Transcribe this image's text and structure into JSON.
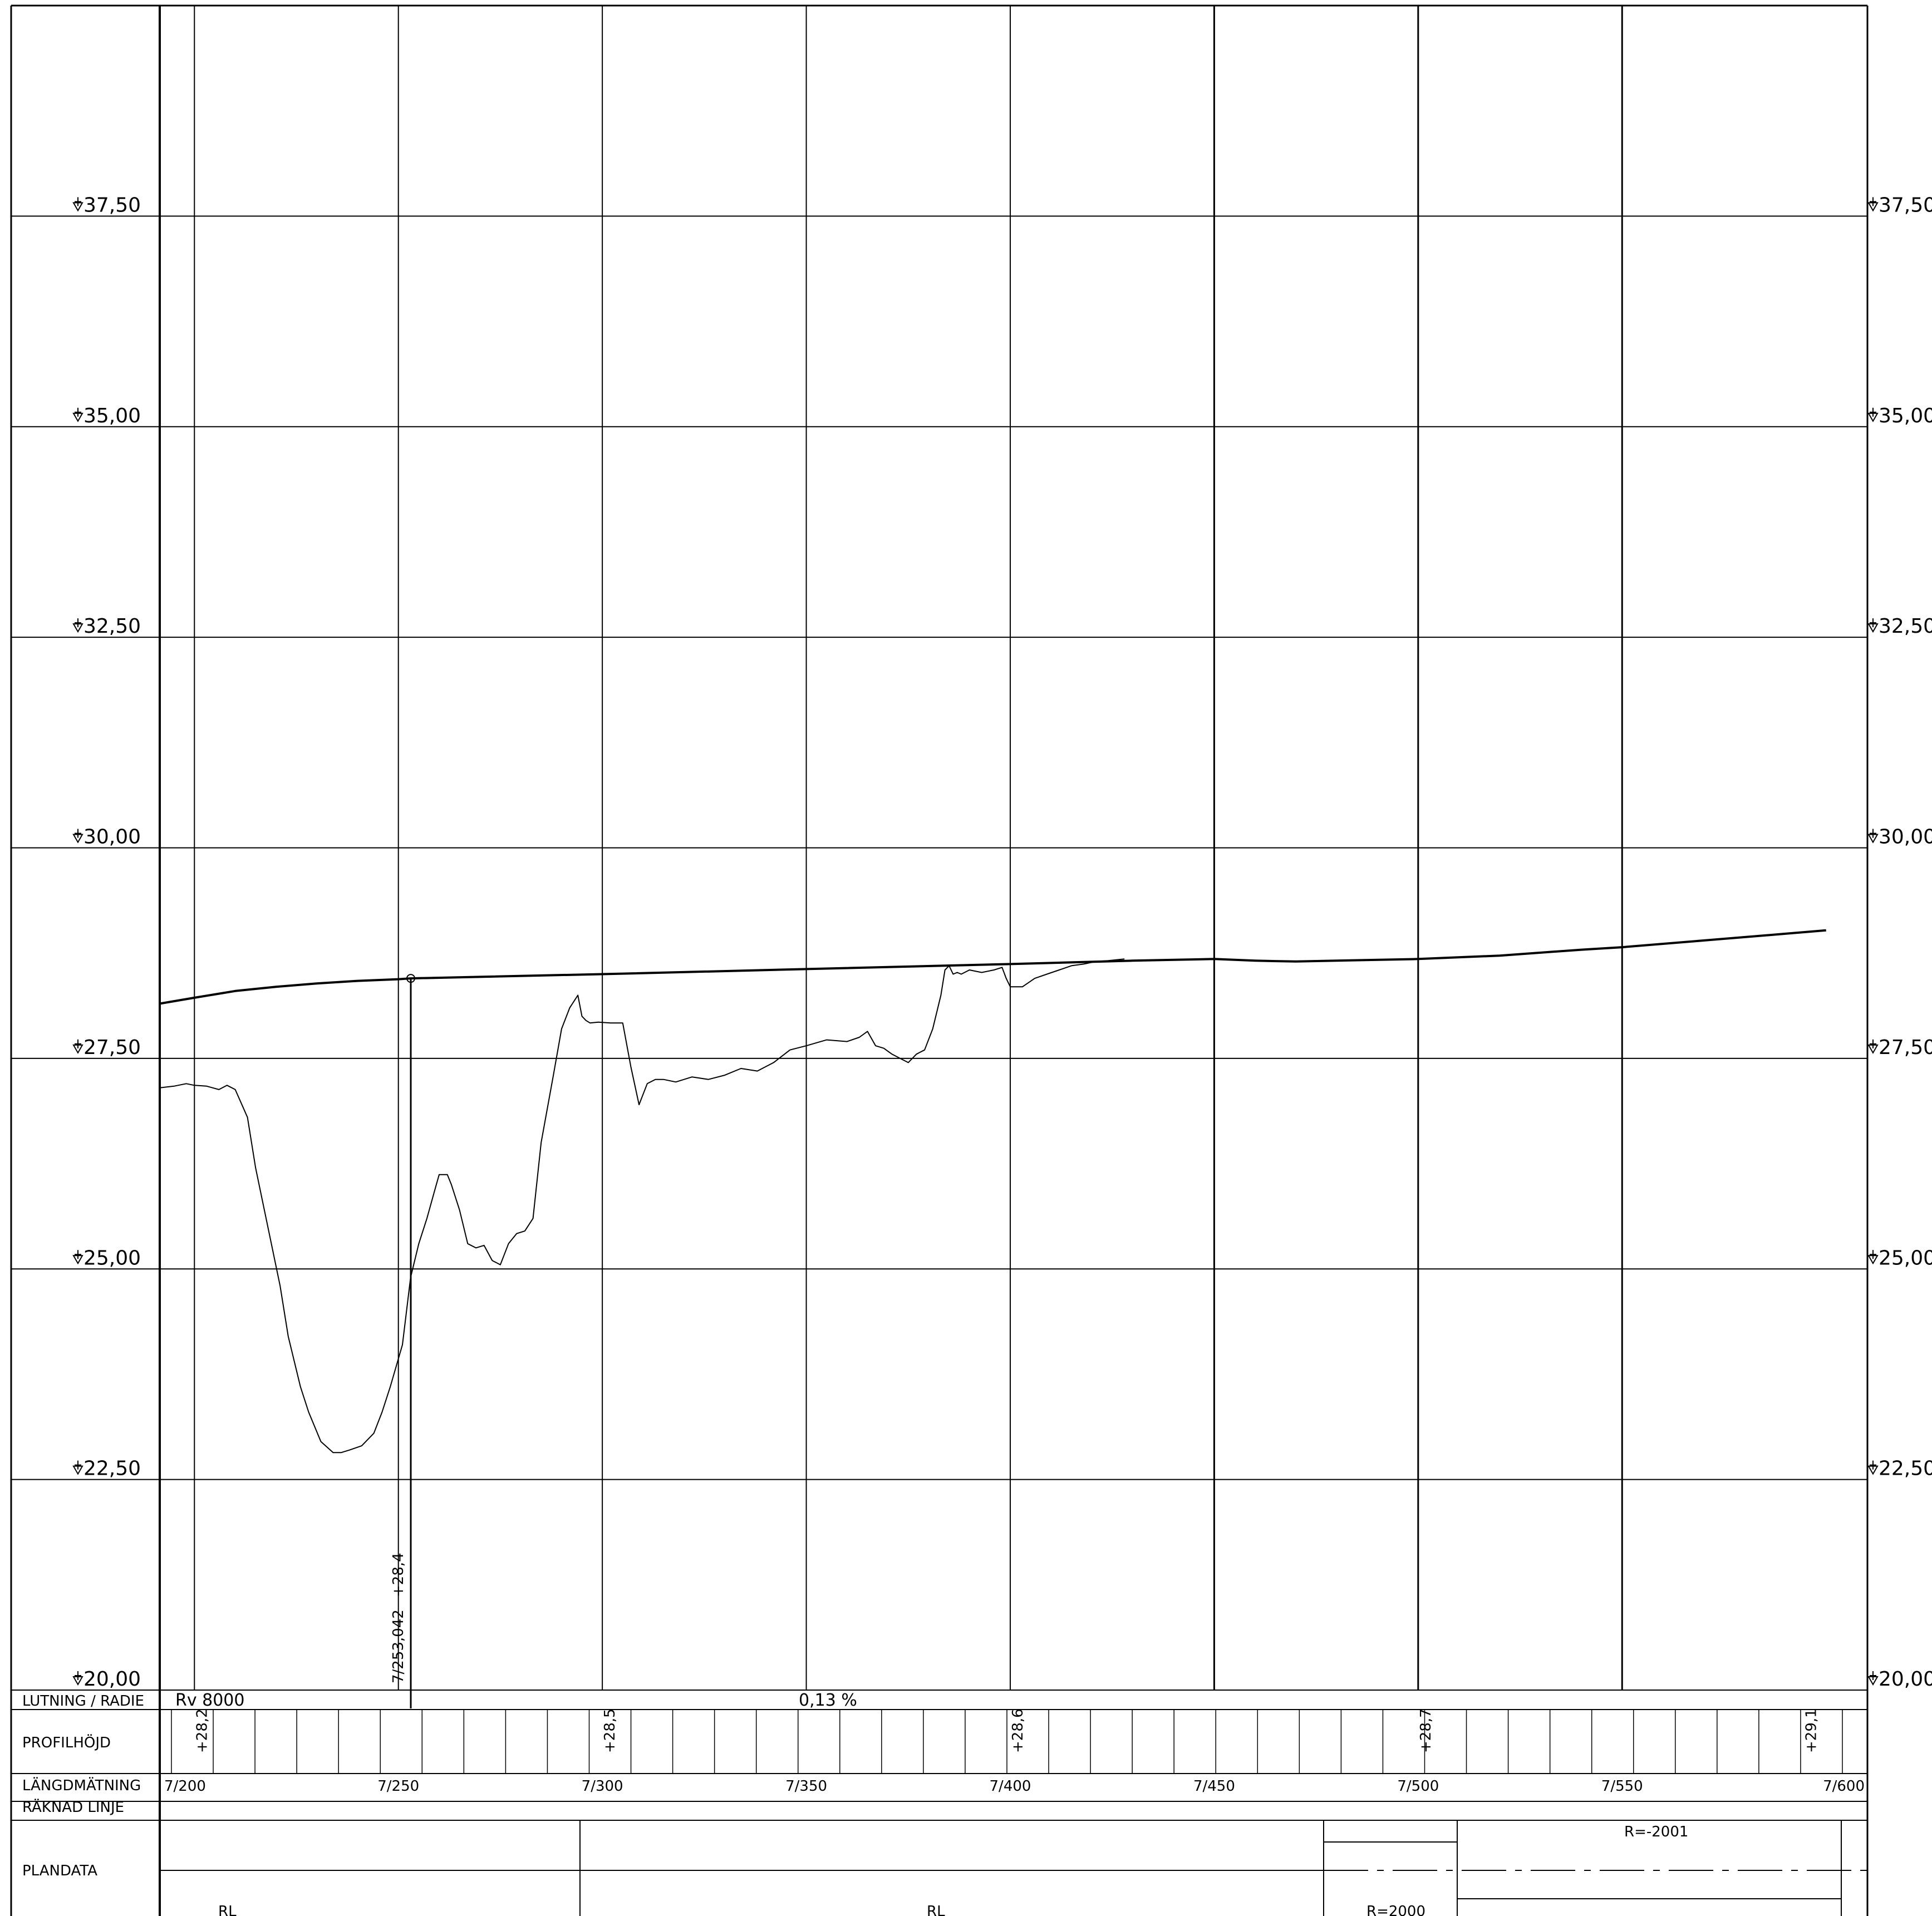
{
  "chart_data": {
    "type": "line",
    "x_range": [
      7191.5,
      7604.0
    ],
    "y_range": [
      20.0,
      40.0
    ],
    "y_ticks": [
      20.0,
      22.5,
      25.0,
      27.5,
      30.0,
      32.5,
      35.0,
      37.5
    ],
    "y_tick_labels": [
      "20,00",
      "22,50",
      "25,00",
      "27,50",
      "30,00",
      "32,50",
      "35,00",
      "37,50"
    ],
    "x_grid": [
      7200,
      7250,
      7300,
      7350,
      7400,
      7450,
      7500,
      7550
    ],
    "x_tick_labels": [
      "7/200",
      "7/250",
      "7/300",
      "7/350",
      "7/400",
      "7/450",
      "7/500",
      "7/550",
      "7/600"
    ],
    "series": [
      {
        "role": "design-profile",
        "x": [
          7191.5,
          7200,
          7210,
          7220,
          7230,
          7240,
          7250,
          7253.0,
          7300,
          7350,
          7400,
          7430,
          7450,
          7460,
          7470,
          7480,
          7500,
          7520,
          7540,
          7550,
          7570,
          7590,
          7600
        ],
        "y": [
          28.15,
          28.22,
          28.3,
          28.35,
          28.39,
          28.42,
          28.44,
          28.45,
          28.5,
          28.56,
          28.62,
          28.66,
          28.68,
          28.66,
          28.65,
          28.66,
          28.68,
          28.72,
          28.79,
          28.82,
          28.9,
          28.98,
          29.02
        ]
      },
      {
        "role": "ground-line",
        "x": [
          7191.5,
          7195,
          7198,
          7200,
          7203,
          7206,
          7208,
          7210,
          7213,
          7215,
          7218,
          7221,
          7223,
          7226,
          7228,
          7231,
          7234,
          7236,
          7238,
          7241,
          7244,
          7246,
          7248,
          7251,
          7253,
          7255,
          7257,
          7259,
          7260,
          7262,
          7263,
          7265,
          7267,
          7269,
          7271,
          7273,
          7275,
          7277,
          7279,
          7281,
          7283,
          7285,
          7288,
          7290,
          7292,
          7294,
          7295,
          7296,
          7297,
          7299,
          7302,
          7305,
          7307,
          7309,
          7311,
          7313,
          7315,
          7318,
          7322,
          7326,
          7330,
          7334,
          7338,
          7342,
          7346,
          7350,
          7355,
          7360,
          7363,
          7365,
          7367,
          7369,
          7371,
          7373,
          7375,
          7377,
          7379,
          7381,
          7383,
          7384,
          7385,
          7386,
          7387,
          7388,
          7390,
          7393,
          7396,
          7398,
          7399,
          7400,
          7403,
          7406,
          7409,
          7412,
          7415,
          7418,
          7421,
          7424,
          7428
        ],
        "y": [
          27.15,
          27.17,
          27.2,
          27.18,
          27.17,
          27.13,
          27.18,
          27.13,
          26.8,
          26.2,
          25.5,
          24.8,
          24.2,
          23.6,
          23.3,
          22.95,
          22.82,
          22.82,
          22.85,
          22.9,
          23.05,
          23.3,
          23.6,
          24.1,
          24.9,
          25.3,
          25.6,
          25.95,
          26.12,
          26.12,
          26.0,
          25.7,
          25.3,
          25.25,
          25.28,
          25.1,
          25.05,
          25.3,
          25.42,
          25.45,
          25.6,
          26.5,
          27.3,
          27.85,
          28.1,
          28.25,
          28.0,
          27.95,
          27.92,
          27.93,
          27.92,
          27.92,
          27.4,
          26.95,
          27.2,
          27.25,
          27.25,
          27.22,
          27.28,
          27.25,
          27.3,
          27.38,
          27.35,
          27.45,
          27.6,
          27.65,
          27.72,
          27.7,
          27.75,
          27.82,
          27.65,
          27.62,
          27.55,
          27.5,
          27.45,
          27.55,
          27.6,
          27.85,
          28.25,
          28.55,
          28.6,
          28.5,
          28.52,
          28.5,
          28.55,
          28.52,
          28.55,
          28.58,
          28.45,
          28.35,
          28.35,
          28.45,
          28.5,
          28.55,
          28.6,
          28.62,
          28.65,
          28.66,
          28.68
        ]
      }
    ],
    "vertex": {
      "station_label": "7/253,042",
      "elevation_label": "+28,4",
      "x": 7253.042,
      "y": 28.45
    }
  },
  "legend_rows": {
    "lutning": "LUTNING / RADIE",
    "profilhojd": "PROFILHÖJD",
    "langdmatning": "LÄNGDMÄTNING",
    "raknad": "RÄKNAD LINJE",
    "plandata": "PLANDATA"
  },
  "lutning_values": {
    "radius": "Rv 8000",
    "grade": "0,13 %"
  },
  "profile_heights": [
    "+28,2",
    "+28,5",
    "+28,6",
    "+28,7",
    "+29,1"
  ],
  "plandata": {
    "r_neg": "R=-2001",
    "r_pos": "R=2000",
    "rl_1": "RL",
    "rl_2": "RL"
  }
}
